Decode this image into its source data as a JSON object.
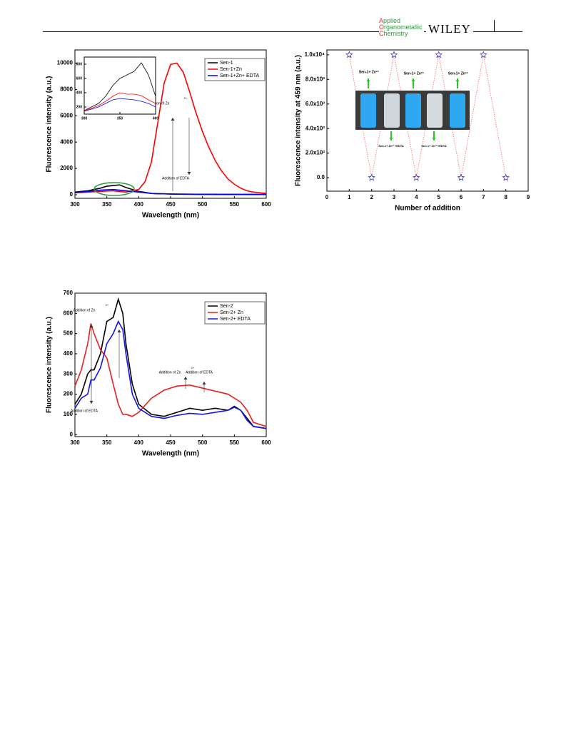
{
  "header": {
    "journal": [
      "Applied",
      "Organometallic",
      "Chemistry"
    ],
    "publisher": "WILEY"
  },
  "chart_data": [
    {
      "type": "line",
      "xlabel": "Wavelength (nm)",
      "ylabel": "Fluorescence intensity (a.u.)",
      "x": [
        300,
        320,
        340,
        350,
        360,
        370,
        380,
        400,
        410,
        420,
        430,
        440,
        450,
        460,
        470,
        480,
        490,
        500,
        510,
        520,
        530,
        540,
        550,
        560,
        570,
        580,
        600
      ],
      "series": [
        {
          "name": "Sen-1",
          "color": "#000000",
          "values": [
            200,
            300,
            500,
            650,
            700,
            750,
            550,
            250,
            180,
            100,
            80,
            70,
            50,
            45,
            40,
            35,
            32,
            30,
            28,
            26,
            25,
            24,
            22,
            21,
            20,
            20,
            20
          ]
        },
        {
          "name": "Sen-1+Zn",
          "color": "#ff0000",
          "values": [
            150,
            200,
            250,
            280,
            300,
            250,
            200,
            400,
            1000,
            2500,
            5500,
            8500,
            9900,
            10000,
            9300,
            7800,
            6200,
            4800,
            3600,
            2600,
            1800,
            1200,
            800,
            500,
            300,
            200,
            100
          ]
        },
        {
          "name": "Sen-1+Zn+ EDTA",
          "color": "#0000ff",
          "values": [
            150,
            250,
            350,
            380,
            400,
            350,
            300,
            200,
            150,
            100,
            80,
            70,
            60,
            55,
            50,
            45,
            42,
            40,
            38,
            36,
            35,
            34,
            32,
            31,
            30,
            30,
            30
          ]
        }
      ],
      "xlim": [
        300,
        600
      ],
      "ylim": [
        -270,
        11000
      ],
      "xticks": [
        300,
        350,
        400,
        450,
        500,
        550,
        600
      ],
      "yticks": [
        0,
        2000,
        4000,
        6000,
        8000,
        10000
      ],
      "legend": "upper right",
      "annotations": [
        "Addition of Zn",
        "2+",
        "Addition of EDTA"
      ]
    },
    {
      "type": "line",
      "x": [
        300,
        310,
        320,
        330,
        340,
        350,
        360,
        370,
        380,
        390,
        400
      ],
      "series": [
        {
          "color": "#000000",
          "values": [
            150,
            200,
            250,
            350,
            500,
            600,
            650,
            700,
            820,
            650,
            350
          ]
        },
        {
          "color": "#ff0000",
          "values": [
            150,
            180,
            220,
            280,
            350,
            400,
            380,
            380,
            360,
            300,
            250
          ]
        },
        {
          "color": "#0000ff",
          "values": [
            140,
            170,
            200,
            250,
            300,
            320,
            310,
            300,
            280,
            250,
            200
          ]
        }
      ],
      "xlim": [
        300,
        400
      ],
      "ylim": [
        100,
        900
      ],
      "xticks": [
        300,
        350,
        400
      ],
      "yticks": [
        200,
        400,
        600,
        800
      ]
    },
    {
      "type": "scatter",
      "xlabel": "Number of addition",
      "ylabel": "Fluorescence intensity at 459 nm (a.u.)",
      "x": [
        1,
        2,
        3,
        4,
        5,
        6,
        7,
        8
      ],
      "values": [
        10000,
        0,
        10000,
        0,
        10000,
        0,
        10000,
        0
      ],
      "color": "#3333cc",
      "line_color": "#ff6666",
      "xlim": [
        0,
        9
      ],
      "ylim": [
        -1100,
        10400
      ],
      "xticks": [
        0,
        1,
        2,
        3,
        4,
        5,
        6,
        7,
        8,
        9
      ],
      "yticks": [
        {
          "value": 0,
          "label": "0.0"
        },
        {
          "value": 2000,
          "label": "2.0x10³"
        },
        {
          "value": 4000,
          "label": "4.0x10³"
        },
        {
          "value": 6000,
          "label": "6.0x10³"
        },
        {
          "value": 8000,
          "label": "8.0x10³"
        },
        {
          "value": 10000,
          "label": "1.0x10⁴"
        }
      ],
      "annotations": [
        "Sen-1+ Zn²⁺",
        "Sen-1+ Zn²⁺",
        "Sen-1+ Zn²⁺",
        "Sen-1+ Zn²⁺+EDTA",
        "Sen-1+ Zn²⁺+EDTA"
      ]
    },
    {
      "type": "line",
      "xlabel": "Wavelength (nm)",
      "ylabel": "Fluorescence intensity (a.u.)",
      "x": [
        300,
        310,
        320,
        325,
        330,
        340,
        350,
        360,
        368,
        375,
        380,
        390,
        400,
        420,
        440,
        460,
        480,
        500,
        520,
        540,
        550,
        560,
        570,
        580,
        600
      ],
      "series": [
        {
          "name": "Sen-2",
          "color": "#000000",
          "values": [
            150,
            200,
            300,
            320,
            320,
            400,
            560,
            580,
            670,
            600,
            450,
            250,
            150,
            100,
            90,
            110,
            130,
            120,
            130,
            120,
            140,
            120,
            80,
            40,
            30
          ]
        },
        {
          "name": "Sen-2+ Zn",
          "color": "#e8201e",
          "values": [
            240,
            320,
            450,
            550,
            500,
            420,
            380,
            250,
            150,
            100,
            100,
            90,
            110,
            180,
            220,
            240,
            245,
            230,
            215,
            200,
            180,
            160,
            120,
            60,
            40
          ]
        },
        {
          "name": "Sen-2+ EDTA",
          "color": "#1414e6",
          "values": [
            130,
            180,
            200,
            270,
            270,
            330,
            450,
            500,
            560,
            520,
            400,
            200,
            130,
            90,
            80,
            95,
            105,
            100,
            110,
            120,
            135,
            120,
            70,
            40,
            30
          ]
        }
      ],
      "xlim": [
        300,
        600
      ],
      "ylim": [
        -10,
        700
      ],
      "xticks": [
        300,
        350,
        400,
        450,
        500,
        550,
        600
      ],
      "yticks": [
        0,
        100,
        200,
        300,
        400,
        500,
        600,
        700
      ],
      "legend": "upper right",
      "annotations": [
        "Addition of Zn",
        "2+",
        "Addition of EDTA",
        "Addition of Zn",
        "2+",
        "Addition of EDTA"
      ]
    }
  ]
}
